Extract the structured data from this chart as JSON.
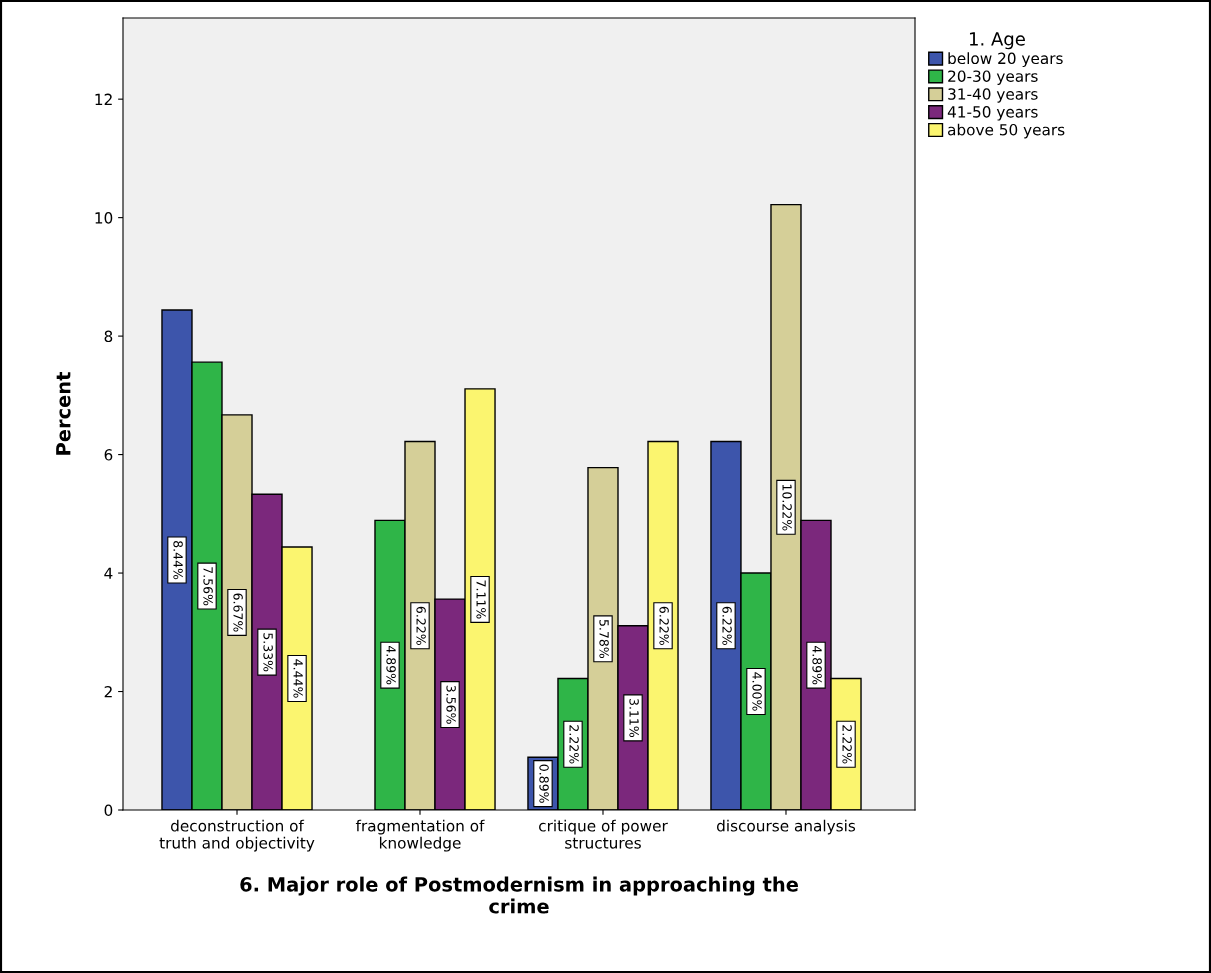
{
  "chart_data": {
    "type": "bar",
    "xlabel": "6. Major role of Postmodernism in approaching the\ncrime",
    "ylabel": "Percent",
    "legend_title": "1. Age",
    "legend": "top right",
    "categories": [
      "deconstruction of\ntruth and objectivity",
      "fragmentation of\nknowledge",
      "critique of power\nstructures",
      "discourse analysis"
    ],
    "series": [
      {
        "name": "below 20 years",
        "color": "#3d55ab",
        "values": [
          8.44,
          null,
          0.89,
          6.22
        ],
        "value_labels": [
          "8.44%",
          null,
          "0.89%",
          "6.22%"
        ]
      },
      {
        "name": "20-30 years",
        "color": "#2fb548",
        "values": [
          7.56,
          4.89,
          2.22,
          4.0
        ],
        "value_labels": [
          "7.56%",
          "4.89%",
          "2.22%",
          "4.00%"
        ]
      },
      {
        "name": "31-40 years",
        "color": "#d5cf98",
        "values": [
          6.67,
          6.22,
          5.78,
          10.22
        ],
        "value_labels": [
          "6.67%",
          "6.22%",
          "5.78%",
          "10.22%"
        ]
      },
      {
        "name": "41-50 years",
        "color": "#7b287c",
        "values": [
          5.33,
          3.56,
          3.11,
          4.89
        ],
        "value_labels": [
          "5.33%",
          "3.56%",
          "3.11%",
          "4.89%"
        ]
      },
      {
        "name": "above 50 years",
        "color": "#fbf56f",
        "values": [
          4.44,
          7.11,
          6.22,
          2.22
        ],
        "value_labels": [
          "4.44%",
          "7.11%",
          "6.22%",
          "2.22%"
        ]
      }
    ],
    "ylim": [
      0,
      13.37
    ],
    "yticks": [
      0,
      2,
      4,
      6,
      8,
      10,
      12
    ],
    "grid": false
  }
}
